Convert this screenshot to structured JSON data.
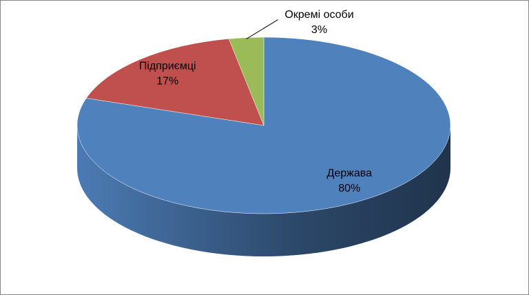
{
  "chart_data": {
    "type": "pie",
    "categories": [
      "Держава",
      "Підприємці",
      "Окремі особи"
    ],
    "values": [
      80,
      17,
      3
    ],
    "value_labels": [
      "80%",
      "17%",
      "3%"
    ],
    "colors": [
      "#4f81bd",
      "#c0504d",
      "#9bbb59"
    ]
  }
}
